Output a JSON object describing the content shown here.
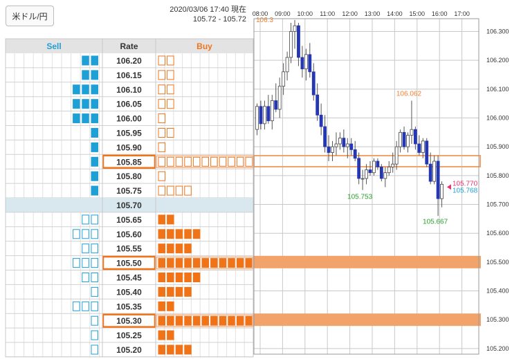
{
  "pair_selector": {
    "label": "米ドル/円"
  },
  "quote": {
    "timestamp": "2020/03/06 17:40 現在",
    "range": "105.72 - 105.72"
  },
  "orderbook": {
    "headers": {
      "sell": "Sell",
      "rate": "Rate",
      "buy": "Buy"
    },
    "current_rate": "105.70",
    "colors": {
      "sell": "#1e9fd6",
      "buy": "#f07318",
      "highlight": "#f07318",
      "current_row": "#d9e8ef"
    },
    "rows": [
      {
        "rate": "106.20",
        "sell": 2,
        "sell_filled": 2,
        "buy": 2,
        "buy_filled": 0,
        "highlight": false
      },
      {
        "rate": "106.15",
        "sell": 2,
        "sell_filled": 2,
        "buy": 2,
        "buy_filled": 0,
        "highlight": false
      },
      {
        "rate": "106.10",
        "sell": 3,
        "sell_filled": 3,
        "buy": 2,
        "buy_filled": 0,
        "highlight": false
      },
      {
        "rate": "106.05",
        "sell": 3,
        "sell_filled": 3,
        "buy": 2,
        "buy_filled": 0,
        "highlight": false
      },
      {
        "rate": "106.00",
        "sell": 3,
        "sell_filled": 3,
        "buy": 1,
        "buy_filled": 0,
        "highlight": false
      },
      {
        "rate": "105.95",
        "sell": 1,
        "sell_filled": 1,
        "buy": 2,
        "buy_filled": 0,
        "highlight": false
      },
      {
        "rate": "105.90",
        "sell": 1,
        "sell_filled": 1,
        "buy": 1,
        "buy_filled": 0,
        "highlight": false
      },
      {
        "rate": "105.85",
        "sell": 1,
        "sell_filled": 1,
        "buy": 11,
        "buy_filled": 0,
        "highlight": true
      },
      {
        "rate": "105.80",
        "sell": 1,
        "sell_filled": 1,
        "buy": 1,
        "buy_filled": 0,
        "highlight": false
      },
      {
        "rate": "105.75",
        "sell": 1,
        "sell_filled": 1,
        "buy": 4,
        "buy_filled": 0,
        "highlight": false
      },
      {
        "rate": "105.70",
        "sell": 0,
        "sell_filled": 0,
        "buy": 0,
        "buy_filled": 0,
        "highlight": false,
        "current": true
      },
      {
        "rate": "105.65",
        "sell": 2,
        "sell_filled": 0,
        "buy": 2,
        "buy_filled": 2,
        "highlight": false
      },
      {
        "rate": "105.60",
        "sell": 3,
        "sell_filled": 0,
        "buy": 5,
        "buy_filled": 5,
        "highlight": false
      },
      {
        "rate": "105.55",
        "sell": 2,
        "sell_filled": 0,
        "buy": 4,
        "buy_filled": 4,
        "highlight": false
      },
      {
        "rate": "105.50",
        "sell": 3,
        "sell_filled": 0,
        "buy": 11,
        "buy_filled": 11,
        "highlight": true
      },
      {
        "rate": "105.45",
        "sell": 2,
        "sell_filled": 0,
        "buy": 5,
        "buy_filled": 5,
        "highlight": false
      },
      {
        "rate": "105.40",
        "sell": 1,
        "sell_filled": 0,
        "buy": 4,
        "buy_filled": 4,
        "highlight": false
      },
      {
        "rate": "105.35",
        "sell": 3,
        "sell_filled": 0,
        "buy": 2,
        "buy_filled": 2,
        "highlight": false
      },
      {
        "rate": "105.30",
        "sell": 1,
        "sell_filled": 0,
        "buy": 11,
        "buy_filled": 11,
        "highlight": true
      },
      {
        "rate": "105.25",
        "sell": 1,
        "sell_filled": 0,
        "buy": 2,
        "buy_filled": 2,
        "highlight": false
      },
      {
        "rate": "105.20",
        "sell": 1,
        "sell_filled": 0,
        "buy": 4,
        "buy_filled": 4,
        "highlight": false
      }
    ]
  },
  "chart_data": {
    "type": "candlestick",
    "x_ticks": [
      "08:00",
      "09:00",
      "10:00",
      "11:00",
      "12:00",
      "13:00",
      "14:00",
      "15:00",
      "16:00",
      "17:00"
    ],
    "y_ticks": [
      "106.300",
      "106.200",
      "106.100",
      "106.000",
      "105.900",
      "105.800",
      "105.700",
      "105.600",
      "105.500",
      "105.400",
      "105.300",
      "105.200"
    ],
    "ylim": [
      105.18,
      106.35
    ],
    "colors": {
      "up": "#ffffff",
      "down": "#2537b3",
      "highlight_band": "#f2a36a",
      "high_label": "#f08030",
      "low_label": "#2ca02c",
      "current_ask": "#e8336c",
      "current_bid": "#1ea0d6"
    },
    "candles": [
      [
        105.96,
        106.05,
        105.94,
        106.04
      ],
      [
        106.04,
        106.06,
        105.96,
        105.98
      ],
      [
        105.98,
        106.06,
        105.96,
        106.04
      ],
      [
        106.04,
        106.08,
        105.98,
        105.99
      ],
      [
        105.99,
        106.08,
        105.96,
        106.06
      ],
      [
        106.06,
        106.12,
        106.02,
        106.03
      ],
      [
        106.03,
        106.14,
        106.0,
        106.11
      ],
      [
        106.11,
        106.19,
        106.08,
        106.16
      ],
      [
        106.16,
        106.23,
        106.13,
        106.21
      ],
      [
        106.21,
        106.33,
        106.19,
        106.3
      ],
      [
        106.3,
        106.34,
        106.24,
        106.32
      ],
      [
        106.32,
        106.33,
        106.18,
        106.21
      ],
      [
        106.21,
        106.25,
        106.14,
        106.17
      ],
      [
        106.17,
        106.24,
        106.13,
        106.22
      ],
      [
        106.22,
        106.26,
        106.14,
        106.16
      ],
      [
        106.16,
        106.19,
        106.06,
        106.08
      ],
      [
        106.08,
        106.12,
        105.99,
        106.01
      ],
      [
        106.01,
        106.05,
        105.94,
        105.97
      ],
      [
        105.97,
        106.01,
        105.88,
        105.9
      ],
      [
        105.9,
        105.94,
        105.85,
        105.88
      ],
      [
        105.88,
        105.92,
        105.85,
        105.9
      ],
      [
        105.9,
        105.95,
        105.87,
        105.91
      ],
      [
        105.91,
        105.95,
        105.89,
        105.93
      ],
      [
        105.93,
        105.96,
        105.88,
        105.9
      ],
      [
        105.9,
        105.93,
        105.86,
        105.91
      ],
      [
        105.91,
        105.93,
        105.87,
        105.89
      ],
      [
        105.89,
        105.92,
        105.85,
        105.86
      ],
      [
        105.86,
        105.88,
        105.77,
        105.79
      ],
      [
        105.79,
        105.82,
        105.75,
        105.79
      ],
      [
        105.79,
        105.84,
        105.77,
        105.82
      ],
      [
        105.82,
        105.85,
        105.8,
        105.81
      ],
      [
        105.81,
        105.86,
        105.8,
        105.85
      ],
      [
        105.85,
        105.86,
        105.82,
        105.83
      ],
      [
        105.83,
        105.84,
        105.78,
        105.79
      ],
      [
        105.79,
        105.83,
        105.76,
        105.81
      ],
      [
        105.81,
        105.85,
        105.8,
        105.83
      ],
      [
        105.83,
        105.88,
        105.81,
        105.84
      ],
      [
        105.84,
        105.92,
        105.82,
        105.9
      ],
      [
        105.9,
        105.96,
        105.88,
        105.95
      ],
      [
        105.95,
        105.97,
        105.89,
        105.9
      ],
      [
        105.9,
        105.95,
        105.88,
        105.94
      ],
      [
        105.94,
        106.06,
        105.91,
        105.96
      ],
      [
        105.96,
        105.97,
        105.89,
        105.91
      ],
      [
        105.91,
        105.94,
        105.87,
        105.88
      ],
      [
        105.88,
        105.93,
        105.86,
        105.92
      ],
      [
        105.92,
        105.93,
        105.83,
        105.84
      ],
      [
        105.84,
        105.88,
        105.77,
        105.78
      ],
      [
        105.78,
        105.87,
        105.77,
        105.85
      ],
      [
        105.85,
        105.87,
        105.66,
        105.72
      ],
      [
        105.72,
        105.78,
        105.69,
        105.77
      ]
    ],
    "annotations": [
      {
        "text": "106.062",
        "value": 106.062,
        "candle": 41,
        "kind": "high"
      },
      {
        "text": "105.753",
        "value": 105.753,
        "candle": 28,
        "kind": "low"
      },
      {
        "text": "105.667",
        "value": 105.667,
        "candle": 48,
        "kind": "low"
      }
    ],
    "top_clip_label": "106.3",
    "current_ask": "105.770",
    "current_bid": "105.768",
    "current_ask_value": 105.77,
    "highlight_levels": [
      105.85,
      105.5,
      105.3
    ]
  }
}
